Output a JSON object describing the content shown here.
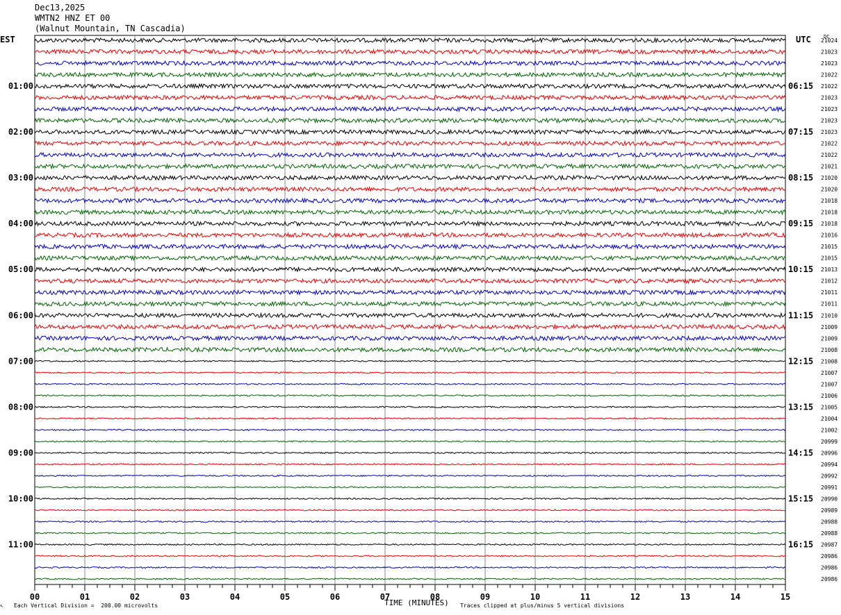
{
  "header": {
    "date": "Dec13,2025",
    "station": "WMTN2 HNZ ET 00",
    "location": "(Walnut Mountain, TN Cascadia)"
  },
  "left_zone_label": "EST",
  "right_zone_label": "UTC",
  "dc_label": "DC",
  "footer": {
    "scale_note": "Each Vertical Division =  200.00 microvolts",
    "clip_note": "Traces clipped at plus/minus 5 vertical divisions",
    "corner_mark": "↖"
  },
  "chart_data": {
    "type": "line",
    "title": "",
    "xlabel": "TIME (MINUTES)",
    "ylabel": "",
    "x_range": [
      0,
      15
    ],
    "x_ticks": [
      "00",
      "01",
      "02",
      "03",
      "04",
      "05",
      "06",
      "07",
      "08",
      "09",
      "10",
      "11",
      "12",
      "13",
      "14",
      "15"
    ],
    "trace_interval_minutes": 15,
    "trace_count": 48,
    "trace_colors": [
      "#000000",
      "#ee0000",
      "#0000cc",
      "#006600"
    ],
    "left_hour_labels": [
      "01:00",
      "02:00",
      "03:00",
      "04:00",
      "05:00",
      "06:00",
      "07:00",
      "08:00",
      "09:00",
      "10:00",
      "11:00"
    ],
    "right_hour_labels": [
      "06:15",
      "07:15",
      "08:15",
      "09:15",
      "10:15",
      "11:15",
      "12:15",
      "13:15",
      "14:15",
      "15:15",
      "16:15"
    ],
    "dc_offsets": [
      21024,
      21023,
      21023,
      21022,
      21022,
      21023,
      21023,
      21023,
      21023,
      21022,
      21022,
      21021,
      21020,
      21020,
      21018,
      21018,
      21018,
      21016,
      21015,
      21015,
      21013,
      21012,
      21011,
      21011,
      21010,
      21009,
      21009,
      21008,
      21008,
      21007,
      21007,
      21006,
      21005,
      21004,
      21002,
      20999,
      20996,
      20994,
      20992,
      20991,
      20990,
      20989,
      20988,
      20988,
      20987,
      20986,
      20986,
      20986
    ],
    "noise_amplitude": [
      3,
      3,
      3,
      3,
      3,
      3,
      3,
      3,
      3,
      3,
      3,
      3,
      3,
      3,
      3,
      3,
      3,
      3,
      3,
      3,
      3,
      3,
      3,
      3,
      3,
      3,
      3,
      3,
      1,
      1,
      1,
      1,
      1,
      1,
      1,
      1,
      1,
      1,
      1,
      1,
      1,
      1,
      1,
      1,
      1,
      1,
      1,
      1
    ],
    "grid": true
  }
}
